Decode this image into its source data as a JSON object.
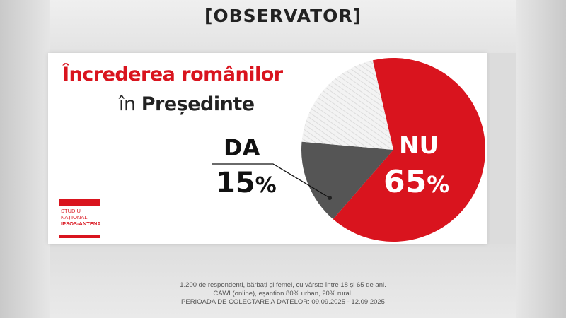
{
  "brand": "[OBSERVATOR]",
  "chart_data": {
    "type": "pie",
    "title_line1": "Încrederea românilor",
    "title_line2_prefix": "în",
    "title_line2_word": "Președinte",
    "slices": [
      {
        "label": "NU",
        "value": 65,
        "display": "65",
        "color": "#d9141e"
      },
      {
        "label": "DA",
        "value": 15,
        "display": "15",
        "color": "#555555"
      },
      {
        "label": "",
        "value": 20,
        "display": "",
        "color": "#f1f1f1"
      }
    ],
    "unit": "%"
  },
  "logo": {
    "line1": "STUDIU",
    "line2": "NAȚIONAL",
    "line3": "IPSOS-ANTENA"
  },
  "footnote": {
    "line1": "1.200 de respondenți, bărbați și femei, cu vârste între 18 și 65 de ani.",
    "line2": "CAWI (online), eșantion 80% urban, 20% rural.",
    "line3": "PERIOADA DE COLECTARE A DATELOR: 09.09.2025 - 12.09.2025"
  },
  "colors": {
    "accent": "#d9141e",
    "dark_slice": "#555555"
  }
}
